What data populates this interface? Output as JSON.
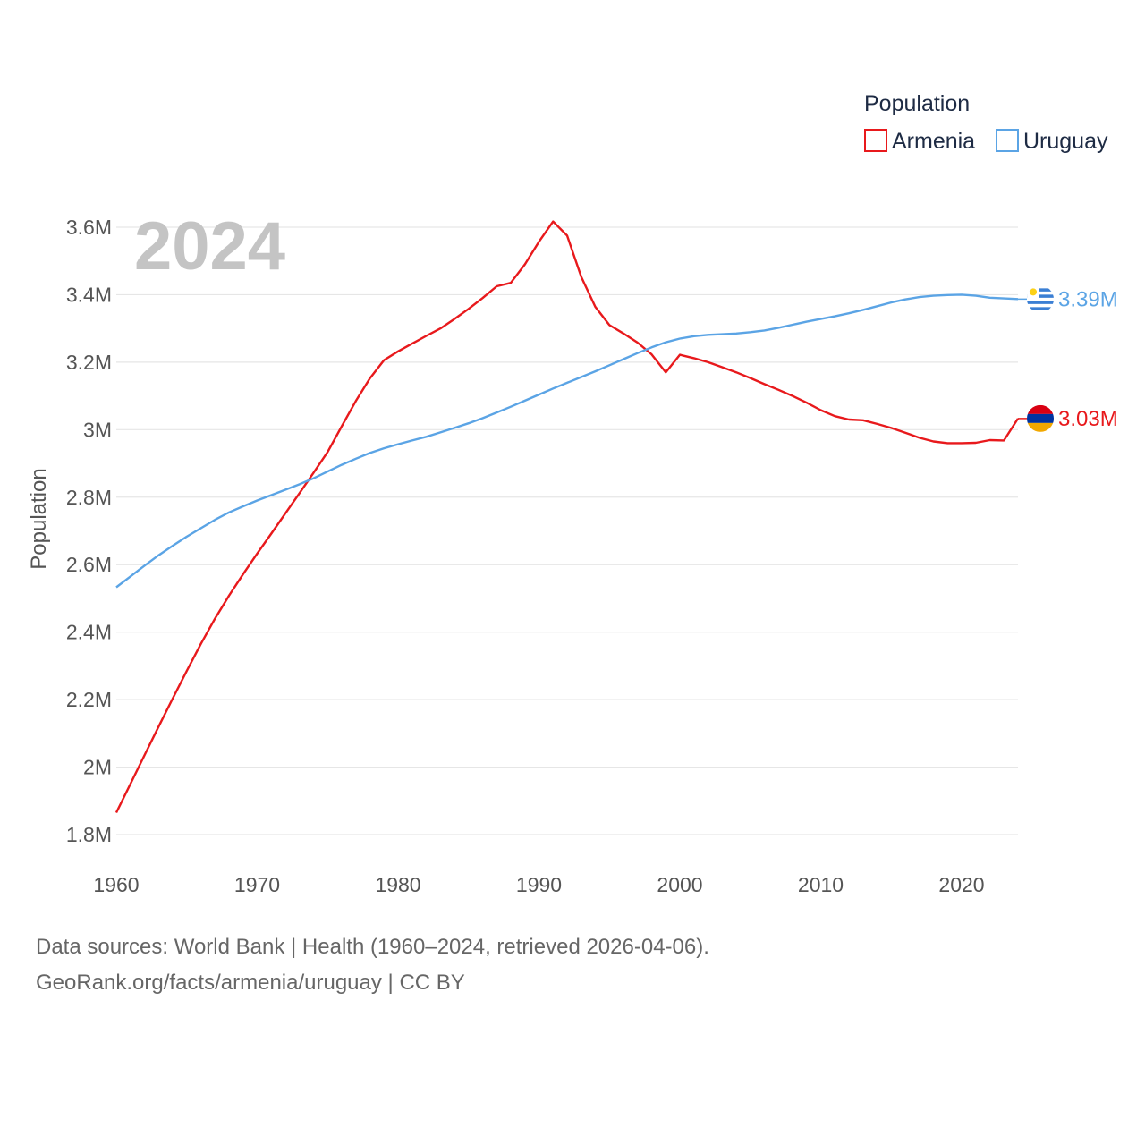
{
  "chart_data": {
    "type": "line",
    "year_display": "2024",
    "ylabel": "Population",
    "legend_title": "Population",
    "ylim": [
      1800000,
      3600000
    ],
    "xlim": [
      1960,
      2024
    ],
    "yticks": [
      {
        "value": 1800000,
        "label": "1.8M"
      },
      {
        "value": 2000000,
        "label": "2M"
      },
      {
        "value": 2200000,
        "label": "2.2M"
      },
      {
        "value": 2400000,
        "label": "2.4M"
      },
      {
        "value": 2600000,
        "label": "2.6M"
      },
      {
        "value": 2800000,
        "label": "2.8M"
      },
      {
        "value": 3000000,
        "label": "3M"
      },
      {
        "value": 3200000,
        "label": "3.2M"
      },
      {
        "value": 3400000,
        "label": "3.4M"
      },
      {
        "value": 3600000,
        "label": "3.6M"
      }
    ],
    "xticks": [
      {
        "value": 1960,
        "label": "1960"
      },
      {
        "value": 1970,
        "label": "1970"
      },
      {
        "value": 1980,
        "label": "1980"
      },
      {
        "value": 1990,
        "label": "1990"
      },
      {
        "value": 2000,
        "label": "2000"
      },
      {
        "value": 2010,
        "label": "2010"
      },
      {
        "value": 2020,
        "label": "2020"
      }
    ],
    "series": [
      {
        "name": "Armenia",
        "color": "#e8191c",
        "end_label": "3.03M",
        "flag_colors": [
          "#d90012",
          "#0033a0",
          "#f2a800"
        ],
        "points": [
          [
            1960,
            1865000
          ],
          [
            1961,
            1950000
          ],
          [
            1962,
            2035000
          ],
          [
            1963,
            2120000
          ],
          [
            1964,
            2203000
          ],
          [
            1965,
            2285000
          ],
          [
            1966,
            2365000
          ],
          [
            1967,
            2440000
          ],
          [
            1968,
            2508000
          ],
          [
            1969,
            2572000
          ],
          [
            1970,
            2633000
          ],
          [
            1971,
            2692000
          ],
          [
            1972,
            2752000
          ],
          [
            1973,
            2812000
          ],
          [
            1974,
            2872000
          ],
          [
            1975,
            2934000
          ],
          [
            1976,
            3010000
          ],
          [
            1977,
            3085000
          ],
          [
            1978,
            3152000
          ],
          [
            1979,
            3206000
          ],
          [
            1980,
            3232000
          ],
          [
            1981,
            3255000
          ],
          [
            1982,
            3278000
          ],
          [
            1983,
            3300000
          ],
          [
            1984,
            3328000
          ],
          [
            1985,
            3358000
          ],
          [
            1986,
            3390000
          ],
          [
            1987,
            3425000
          ],
          [
            1988,
            3435000
          ],
          [
            1989,
            3490000
          ],
          [
            1990,
            3557000
          ],
          [
            1991,
            3617000
          ],
          [
            1992,
            3575000
          ],
          [
            1993,
            3453000
          ],
          [
            1994,
            3364000
          ],
          [
            1995,
            3310000
          ],
          [
            1996,
            3285000
          ],
          [
            1997,
            3258000
          ],
          [
            1998,
            3223000
          ],
          [
            1999,
            3170000
          ],
          [
            2000,
            3222000
          ],
          [
            2001,
            3212000
          ],
          [
            2002,
            3200000
          ],
          [
            2003,
            3185000
          ],
          [
            2004,
            3170000
          ],
          [
            2005,
            3153000
          ],
          [
            2006,
            3135000
          ],
          [
            2007,
            3118000
          ],
          [
            2008,
            3100000
          ],
          [
            2009,
            3080000
          ],
          [
            2010,
            3058000
          ],
          [
            2011,
            3040000
          ],
          [
            2012,
            3030000
          ],
          [
            2013,
            3028000
          ],
          [
            2014,
            3017000
          ],
          [
            2015,
            3005000
          ],
          [
            2016,
            2991000
          ],
          [
            2017,
            2976000
          ],
          [
            2018,
            2965000
          ],
          [
            2019,
            2960000
          ],
          [
            2020,
            2960000
          ],
          [
            2021,
            2961000
          ],
          [
            2022,
            2969000
          ],
          [
            2023,
            2968000
          ],
          [
            2024,
            3033000
          ]
        ]
      },
      {
        "name": "Uruguay",
        "color": "#5ba4e5",
        "end_label": "3.39M",
        "flag_colors": [
          "#ffffff",
          "#3b7fd4",
          "#fcd116"
        ],
        "points": [
          [
            1960,
            2533000
          ],
          [
            1961,
            2565000
          ],
          [
            1962,
            2597000
          ],
          [
            1963,
            2628000
          ],
          [
            1964,
            2656000
          ],
          [
            1965,
            2683000
          ],
          [
            1966,
            2708000
          ],
          [
            1967,
            2733000
          ],
          [
            1968,
            2755000
          ],
          [
            1969,
            2773000
          ],
          [
            1970,
            2790000
          ],
          [
            1971,
            2806000
          ],
          [
            1972,
            2822000
          ],
          [
            1973,
            2838000
          ],
          [
            1974,
            2856000
          ],
          [
            1975,
            2876000
          ],
          [
            1976,
            2896000
          ],
          [
            1977,
            2914000
          ],
          [
            1978,
            2931000
          ],
          [
            1979,
            2945000
          ],
          [
            1980,
            2957000
          ],
          [
            1981,
            2968000
          ],
          [
            1982,
            2979000
          ],
          [
            1983,
            2992000
          ],
          [
            1984,
            3005000
          ],
          [
            1985,
            3019000
          ],
          [
            1986,
            3034000
          ],
          [
            1987,
            3051000
          ],
          [
            1988,
            3068000
          ],
          [
            1989,
            3086000
          ],
          [
            1990,
            3104000
          ],
          [
            1991,
            3122000
          ],
          [
            1992,
            3139000
          ],
          [
            1993,
            3156000
          ],
          [
            1994,
            3173000
          ],
          [
            1995,
            3191000
          ],
          [
            1996,
            3209000
          ],
          [
            1997,
            3227000
          ],
          [
            1998,
            3244000
          ],
          [
            1999,
            3259000
          ],
          [
            2000,
            3270000
          ],
          [
            2001,
            3277000
          ],
          [
            2002,
            3281000
          ],
          [
            2003,
            3283000
          ],
          [
            2004,
            3285000
          ],
          [
            2005,
            3289000
          ],
          [
            2006,
            3294000
          ],
          [
            2007,
            3302000
          ],
          [
            2008,
            3311000
          ],
          [
            2009,
            3320000
          ],
          [
            2010,
            3328000
          ],
          [
            2011,
            3336000
          ],
          [
            2012,
            3345000
          ],
          [
            2013,
            3355000
          ],
          [
            2014,
            3366000
          ],
          [
            2015,
            3377000
          ],
          [
            2016,
            3386000
          ],
          [
            2017,
            3393000
          ],
          [
            2018,
            3397000
          ],
          [
            2019,
            3399000
          ],
          [
            2020,
            3400000
          ],
          [
            2021,
            3397000
          ],
          [
            2022,
            3391000
          ],
          [
            2023,
            3389000
          ],
          [
            2024,
            3387000
          ]
        ]
      }
    ]
  },
  "footer": {
    "line1": "Data sources: World Bank | Health (1960–2024, retrieved 2026-04-06).",
    "line2": "GeoRank.org/facts/armenia/uruguay | CC BY"
  }
}
